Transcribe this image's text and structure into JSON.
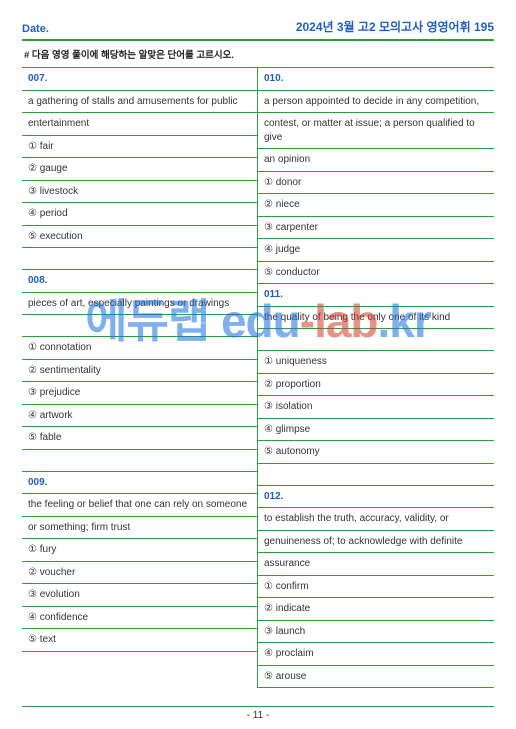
{
  "header": {
    "date_label": "Date.",
    "title": "2024년 3월 고2 모의고사 영영어휘 195"
  },
  "instruction": "# 다음 영영 풀이에 해당하는 알맞은 단어를 고르시오.",
  "watermark": {
    "ko": "에듀랩",
    "edu": " edu",
    "dash": "-",
    "lab": "lab",
    "kr": ".kr"
  },
  "footer": {
    "page": "- 11 -"
  },
  "left": [
    {
      "t": "num",
      "v": "007."
    },
    {
      "t": "txt",
      "v": "a gathering of stalls and amusements for public"
    },
    {
      "t": "txt",
      "v": "entertainment"
    },
    {
      "t": "txt",
      "v": "① fair"
    },
    {
      "t": "txt",
      "v": "② gauge"
    },
    {
      "t": "txt",
      "v": "③ livestock"
    },
    {
      "t": "txt",
      "v": "④ period"
    },
    {
      "t": "txt",
      "v": "⑤ execution"
    },
    {
      "t": "spacer",
      "v": ""
    },
    {
      "t": "num",
      "v": "008."
    },
    {
      "t": "txt",
      "v": "pieces of art, especially paintings or drawings"
    },
    {
      "t": "spacer",
      "v": ""
    },
    {
      "t": "txt",
      "v": "① connotation"
    },
    {
      "t": "txt",
      "v": "② sentimentality"
    },
    {
      "t": "txt",
      "v": "③ prejudice"
    },
    {
      "t": "txt",
      "v": "④ artwork"
    },
    {
      "t": "txt",
      "v": "⑤ fable"
    },
    {
      "t": "spacer",
      "v": ""
    },
    {
      "t": "num",
      "v": "009."
    },
    {
      "t": "txt",
      "v": "the feeling or belief that one can rely on someone"
    },
    {
      "t": "txt",
      "v": "or something; firm trust"
    },
    {
      "t": "txt",
      "v": "① fury"
    },
    {
      "t": "txt",
      "v": "② voucher"
    },
    {
      "t": "txt",
      "v": "③ evolution"
    },
    {
      "t": "txt",
      "v": "④ confidence"
    },
    {
      "t": "txt",
      "v": "⑤ text"
    },
    {
      "t": "spacer-nb",
      "v": ""
    }
  ],
  "right": [
    {
      "t": "num",
      "v": "010."
    },
    {
      "t": "txt",
      "v": "a person appointed to decide in any competition,"
    },
    {
      "t": "txt",
      "v": "contest, or matter at issue; a person qualified to give"
    },
    {
      "t": "txt",
      "v": "an opinion"
    },
    {
      "t": "txt",
      "v": "① donor"
    },
    {
      "t": "txt",
      "v": "② niece"
    },
    {
      "t": "txt",
      "v": "③ carpenter"
    },
    {
      "t": "txt",
      "v": "④ judge"
    },
    {
      "t": "txt",
      "v": "⑤ conductor"
    },
    {
      "t": "num",
      "v": "011."
    },
    {
      "t": "txt",
      "v": "the quality of being the only one of its kind"
    },
    {
      "t": "spacer",
      "v": ""
    },
    {
      "t": "txt",
      "v": "① uniqueness"
    },
    {
      "t": "txt",
      "v": "② proportion"
    },
    {
      "t": "txt",
      "v": "③ isolation"
    },
    {
      "t": "txt",
      "v": "④ glimpse"
    },
    {
      "t": "txt",
      "v": "⑤ autonomy"
    },
    {
      "t": "spacer",
      "v": ""
    },
    {
      "t": "num",
      "v": "012."
    },
    {
      "t": "txt",
      "v": "to establish the truth, accuracy, validity, or"
    },
    {
      "t": "txt",
      "v": "genuineness of; to acknowledge with definite"
    },
    {
      "t": "txt",
      "v": "assurance"
    },
    {
      "t": "txt",
      "v": "① confirm"
    },
    {
      "t": "txt",
      "v": "② indicate"
    },
    {
      "t": "txt",
      "v": "③ launch"
    },
    {
      "t": "txt",
      "v": "④ proclaim"
    },
    {
      "t": "txt",
      "v": "⑤ arouse"
    }
  ]
}
